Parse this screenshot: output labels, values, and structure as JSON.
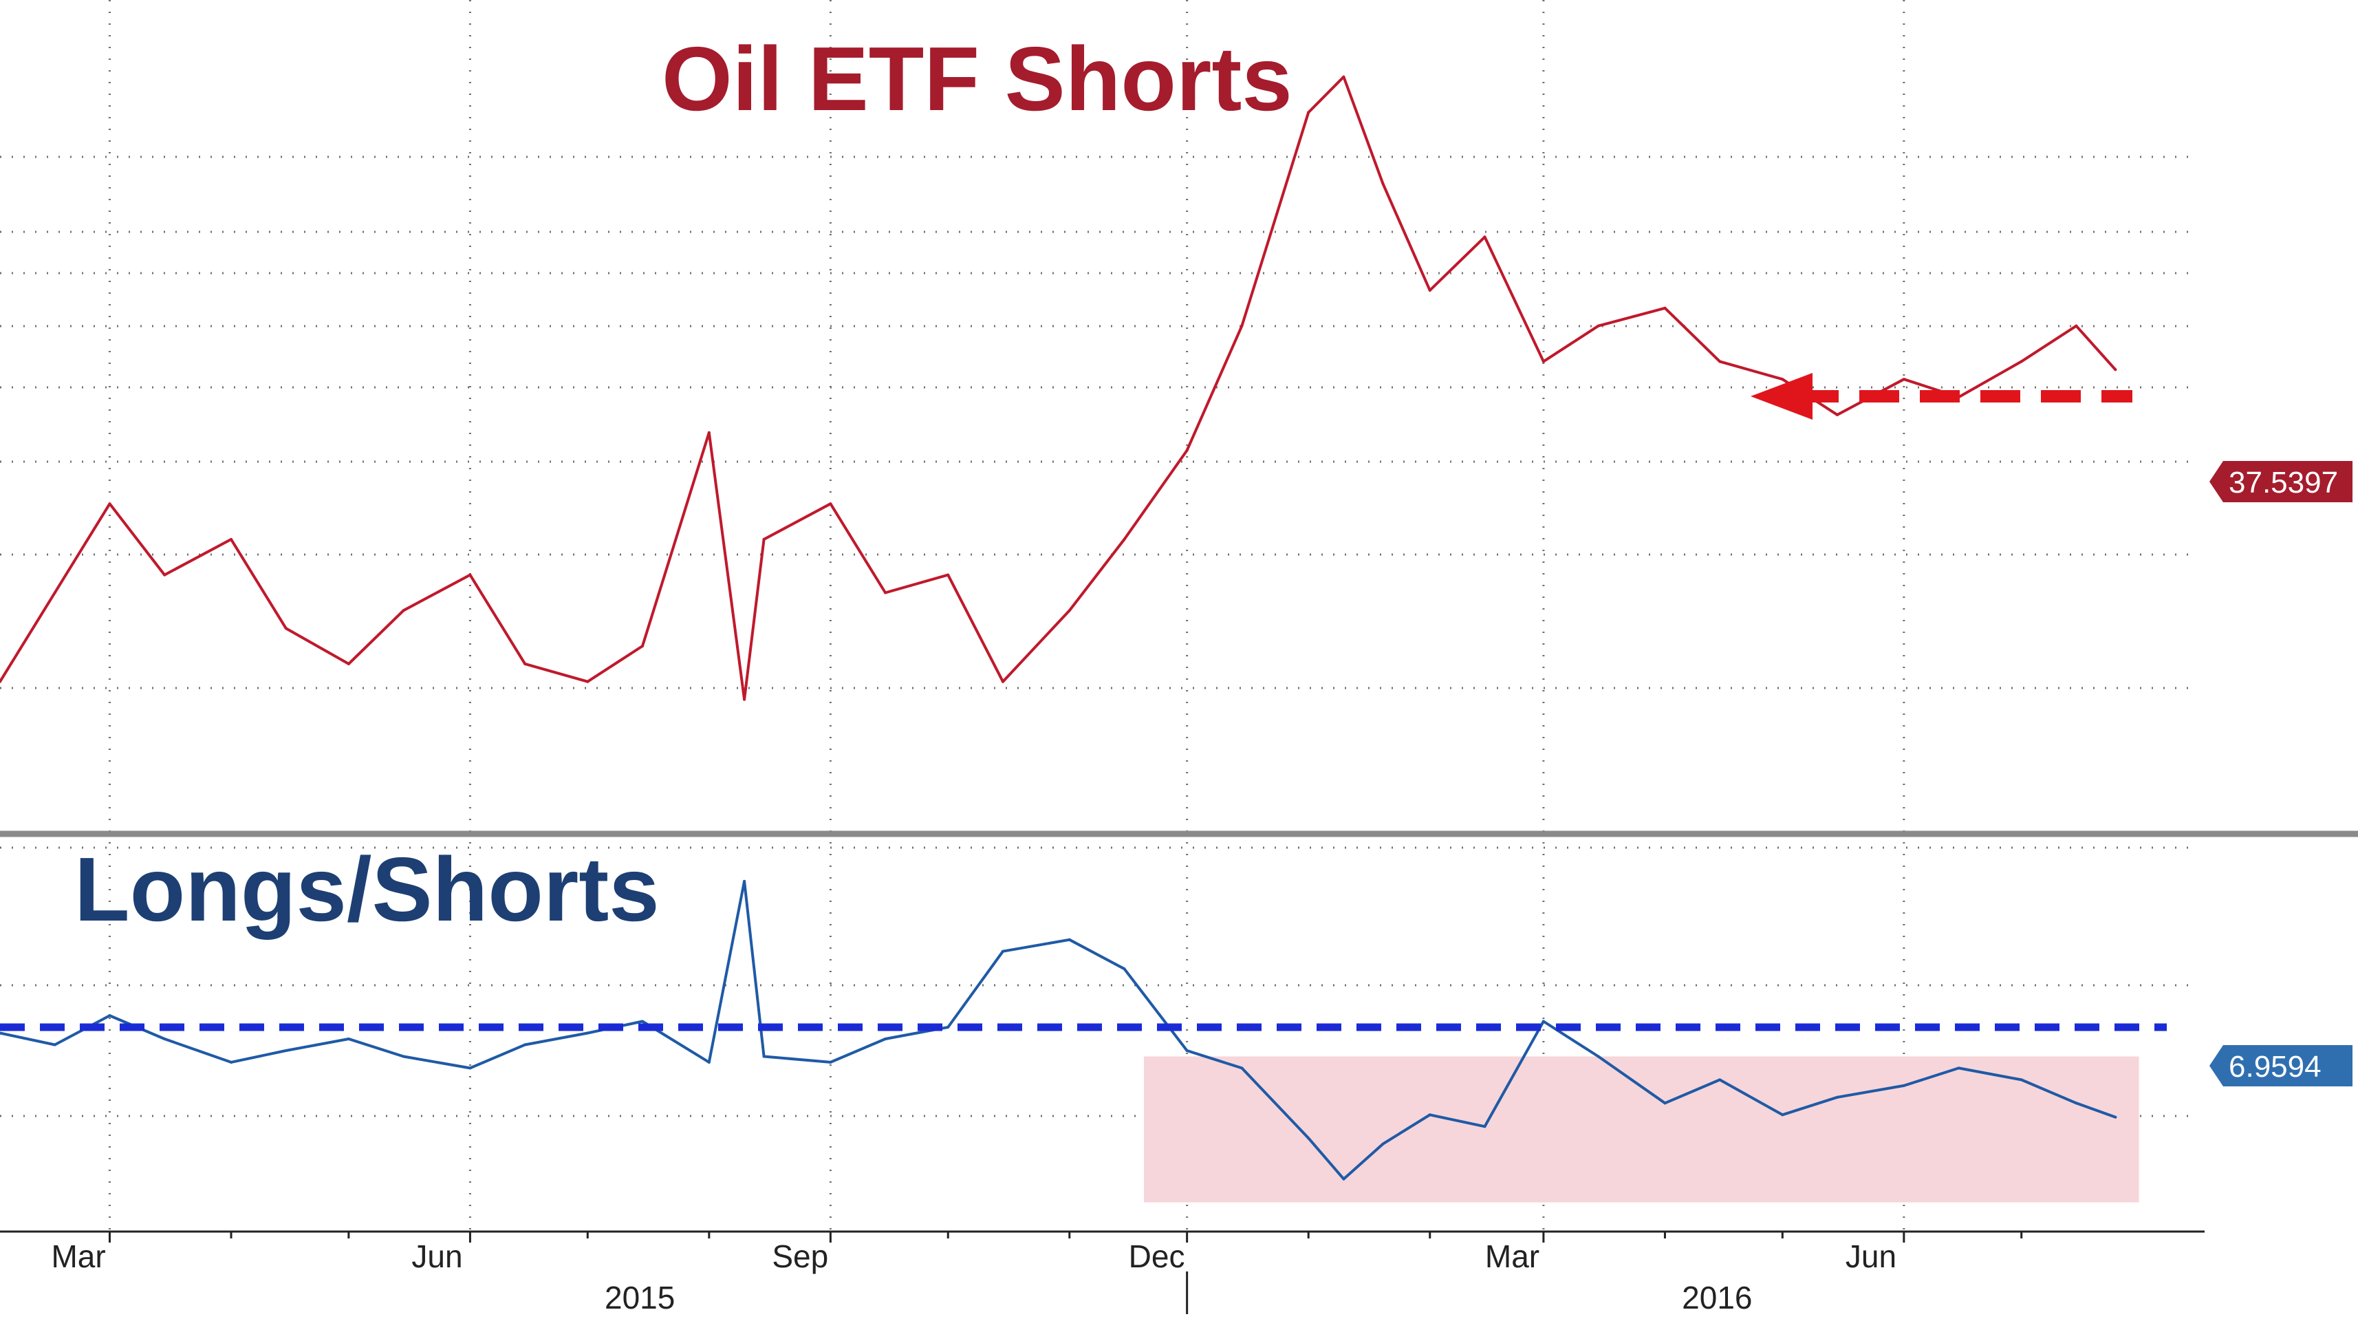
{
  "chart_data": [
    {
      "type": "line",
      "title": "Oil ETF Shorts",
      "xlabel": "",
      "ylabel": "",
      "grid": true,
      "color": "#c0192c",
      "last_value_label": "37.5397",
      "last_value": 37.5397,
      "annotation": "red dashed arrow pointing left from the latest level to the prior matching level (Apr 2016)",
      "x": [
        "2015-02-01",
        "2015-02-15",
        "2015-03-01",
        "2015-03-15",
        "2015-04-01",
        "2015-04-15",
        "2015-05-01",
        "2015-05-15",
        "2015-06-01",
        "2015-06-15",
        "2015-07-01",
        "2015-07-15",
        "2015-08-01",
        "2015-08-10",
        "2015-08-15",
        "2015-09-01",
        "2015-09-15",
        "2015-10-01",
        "2015-10-15",
        "2015-11-01",
        "2015-11-15",
        "2015-12-01",
        "2015-12-15",
        "2016-01-01",
        "2016-01-10",
        "2016-01-20",
        "2016-02-01",
        "2016-02-15",
        "2016-03-01",
        "2016-03-15",
        "2016-04-01",
        "2016-04-15",
        "2016-05-01",
        "2016-05-15",
        "2016-06-01",
        "2016-06-15",
        "2016-07-01",
        "2016-07-15",
        "2016-07-25"
      ],
      "values": [
        20,
        25,
        30,
        26,
        28,
        23,
        21,
        24,
        26,
        21,
        20,
        22,
        34,
        19,
        28,
        30,
        25,
        26,
        20,
        24,
        28,
        33,
        40,
        52,
        54,
        48,
        42,
        45,
        38,
        40,
        41,
        38,
        37,
        35,
        37,
        36,
        38,
        40,
        37.54
      ]
    },
    {
      "type": "line",
      "title": "Longs/Shorts",
      "xlabel": "",
      "ylabel": "",
      "grid": true,
      "color": "#1f5aa6",
      "last_value_label": "6.9594",
      "last_value": 6.9594,
      "reference_line_value": 8.5,
      "highlighted_range": {
        "x_start": "2015-11-20",
        "x_end": "2016-07-31",
        "y_low": 5.5,
        "y_high": 8.0
      },
      "x": [
        "2015-02-01",
        "2015-02-15",
        "2015-03-01",
        "2015-03-15",
        "2015-04-01",
        "2015-04-15",
        "2015-05-01",
        "2015-05-15",
        "2015-06-01",
        "2015-06-15",
        "2015-07-01",
        "2015-07-15",
        "2015-08-01",
        "2015-08-10",
        "2015-08-15",
        "2015-09-01",
        "2015-09-15",
        "2015-10-01",
        "2015-10-15",
        "2015-11-01",
        "2015-11-15",
        "2015-12-01",
        "2015-12-15",
        "2016-01-01",
        "2016-01-10",
        "2016-01-20",
        "2016-02-01",
        "2016-02-15",
        "2016-03-01",
        "2016-03-15",
        "2016-04-01",
        "2016-04-15",
        "2016-05-01",
        "2016-05-15",
        "2016-06-01",
        "2016-06-15",
        "2016-07-01",
        "2016-07-15",
        "2016-07-25"
      ],
      "values": [
        8.4,
        8.2,
        8.7,
        8.3,
        7.9,
        8.1,
        8.3,
        8.0,
        7.8,
        8.2,
        8.4,
        8.6,
        7.9,
        11.0,
        8.0,
        7.9,
        8.3,
        8.5,
        9.8,
        10.0,
        9.5,
        8.1,
        7.8,
        6.6,
        5.9,
        6.5,
        7.0,
        6.8,
        8.6,
        8.0,
        7.2,
        7.6,
        7.0,
        7.3,
        7.5,
        7.8,
        7.6,
        7.2,
        6.96
      ]
    }
  ],
  "x_axis": {
    "ticks": [
      {
        "label": "Mar",
        "date": "2015-03-01"
      },
      {
        "label": "Jun",
        "date": "2015-06-01"
      },
      {
        "label": "Sep",
        "date": "2015-09-01"
      },
      {
        "label": "Dec",
        "date": "2015-12-01"
      },
      {
        "label": "Mar",
        "date": "2016-03-01"
      },
      {
        "label": "Jun",
        "date": "2016-06-01"
      }
    ],
    "years": [
      {
        "label": "2015",
        "date": "2015-07-15"
      },
      {
        "label": "2016",
        "date": "2016-04-15"
      }
    ]
  }
}
